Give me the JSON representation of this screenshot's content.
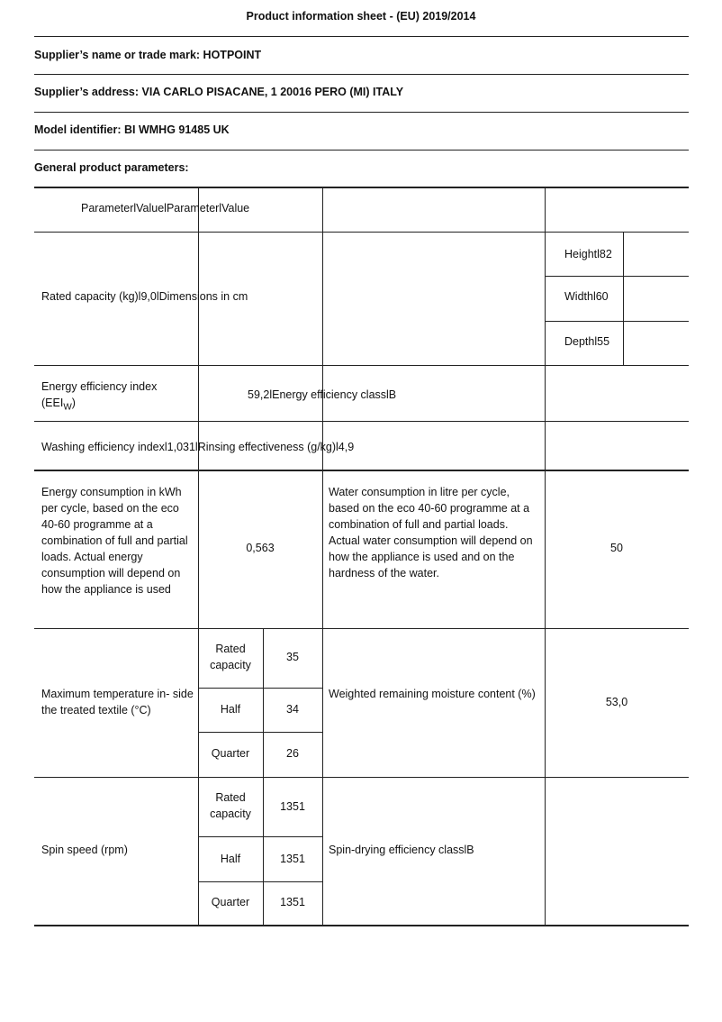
{
  "title": "Product information sheet - (EU) 2019/2014",
  "supplier_name": "Supplier’s name or trade mark: HOTPOINT",
  "supplier_address": "Supplier’s address: VIA CARLO PISACANE, 1 20016 PERO (MI) ITALY",
  "model_identifier": "Model identifier: BI WMHG 91485 UK",
  "section_heading": "General product parameters:",
  "table": {
    "header": "ParameterlValuelParameterlValue",
    "rated_capacity": "Rated capacity (kg)l9,0lDimensions in cm",
    "dimensions": {
      "height": "Heightl82",
      "width": "Widthl60",
      "depth": "Depthl55"
    },
    "eei_label_1": "Energy efficiency index",
    "eei_label_2": "(EEI",
    "eei_sub": "W",
    "eei_label_3": ")",
    "eei_value": "59,2lEnergy efficiency classlB",
    "washing": "Washing efficiency indexl1,031lRinsing effectiveness (g/kg)l4,9",
    "energy_consumption_label": "Energy consumption in kWh per cycle, based on the eco 40-60 programme at a combination of full and partial loads. Actual energy consumption will depend on how the appliance is used",
    "energy_consumption_value": "0,563",
    "water_consumption_label": "Water consumption in litre per cycle, based on the eco 40-60 programme at a combination of full and partial loads. Actual water consumption will depend on how the appliance is used and on the hardness of the water.",
    "water_consumption_value": "50",
    "max_temp_label": "Maximum temperature in- side the treated textile (°C)",
    "max_temp": [
      {
        "load": "Rated capacity",
        "value": "35"
      },
      {
        "load": "Half",
        "value": "34"
      },
      {
        "load": "Quarter",
        "value": "26"
      }
    ],
    "moisture_label": "Weighted remaining moisture content (%)",
    "moisture_value": "53,0",
    "spin_label": "Spin speed (rpm)",
    "spin": [
      {
        "load": "Rated capacity",
        "value": "1351"
      },
      {
        "load": "Half",
        "value": "1351"
      },
      {
        "load": "Quarter",
        "value": "1351"
      }
    ],
    "spin_class": "Spin-drying efficiency classlB"
  }
}
